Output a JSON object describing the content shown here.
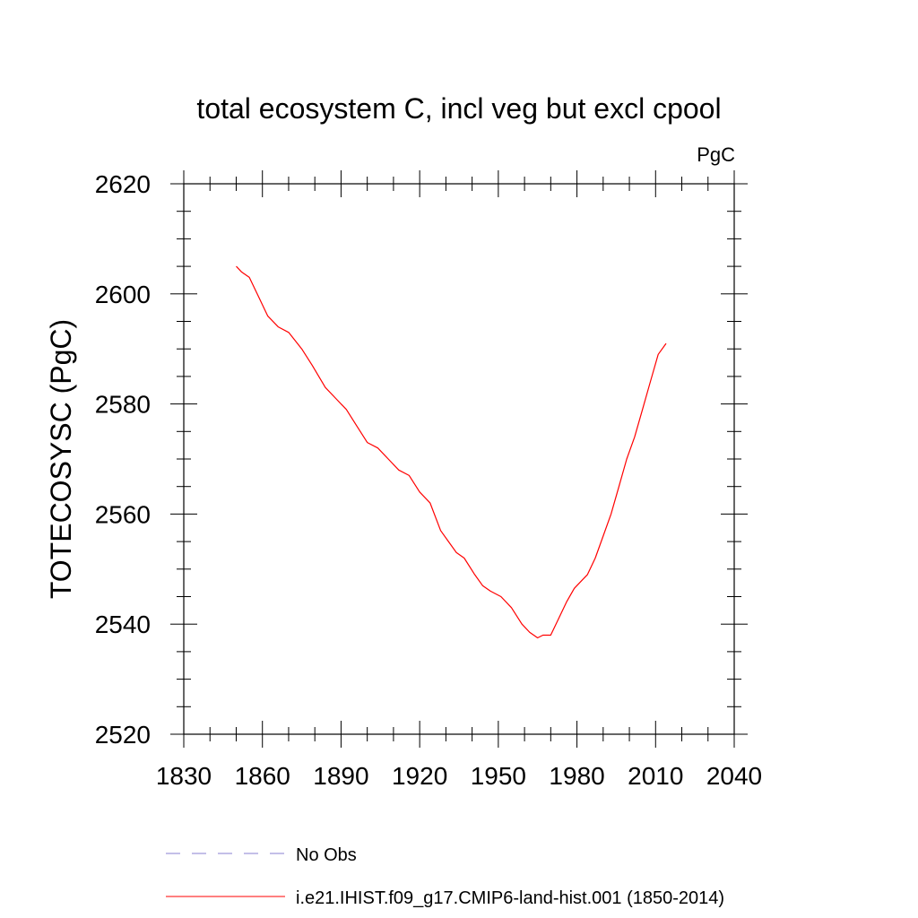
{
  "chart_data": {
    "type": "line",
    "title": "total ecosystem C, incl veg but excl cpool",
    "units_label": "PgC",
    "ylabel": "TOTECOSYSC  (PgC)",
    "xlabel": "",
    "xlim": [
      1830,
      2040
    ],
    "ylim": [
      2520,
      2620
    ],
    "x_major_ticks": [
      1830,
      1860,
      1890,
      1920,
      1950,
      1980,
      2010,
      2040
    ],
    "x_minor_step": 10,
    "y_major_ticks": [
      2520,
      2540,
      2560,
      2580,
      2600,
      2620
    ],
    "y_minor_step": 5,
    "grid": false,
    "legend_position": "bottom",
    "colors": {
      "series": "#ff0000",
      "obs": "#8a7fd0"
    },
    "x_tick_labels": [
      "1830",
      "1860",
      "1890",
      "1920",
      "1950",
      "1980",
      "2010",
      "2040"
    ],
    "y_tick_labels": [
      "2520",
      "2540",
      "2560",
      "2580",
      "2600",
      "2620"
    ],
    "series": [
      {
        "name": "i.e21.IHIST.f09_g17.CMIP6-land-hist.001 (1850-2014)",
        "style": "solid",
        "color": "#ff0000",
        "x": [
          1850,
          1852,
          1855,
          1858,
          1862,
          1866,
          1870,
          1875,
          1879,
          1884,
          1888,
          1892,
          1896,
          1900,
          1904,
          1908,
          1912,
          1916,
          1920,
          1924,
          1928,
          1931,
          1934,
          1937,
          1941,
          1944,
          1947,
          1951,
          1955,
          1959,
          1962,
          1965,
          1967,
          1970,
          1973,
          1976,
          1979,
          1982,
          1984,
          1987,
          1990,
          1993,
          1996,
          1999,
          2002,
          2005,
          2008,
          2011,
          2014
        ],
        "values": [
          2605,
          2604,
          2603,
          2600,
          2596,
          2594,
          2593,
          2590,
          2587,
          2583,
          2581,
          2579,
          2576,
          2573,
          2572,
          2570,
          2568,
          2567,
          2564,
          2562,
          2557,
          2555,
          2553,
          2552,
          2549,
          2547,
          2546,
          2545,
          2543,
          2540,
          2538.5,
          2537.5,
          2538,
          2538,
          2541,
          2544,
          2546.5,
          2548,
          2549,
          2552,
          2556,
          2560,
          2565,
          2570,
          2574,
          2579,
          2584,
          2589,
          2591
        ]
      },
      {
        "name": "No Obs",
        "style": "dashed",
        "color": "#8a7fd0",
        "x": [],
        "values": []
      }
    ]
  }
}
